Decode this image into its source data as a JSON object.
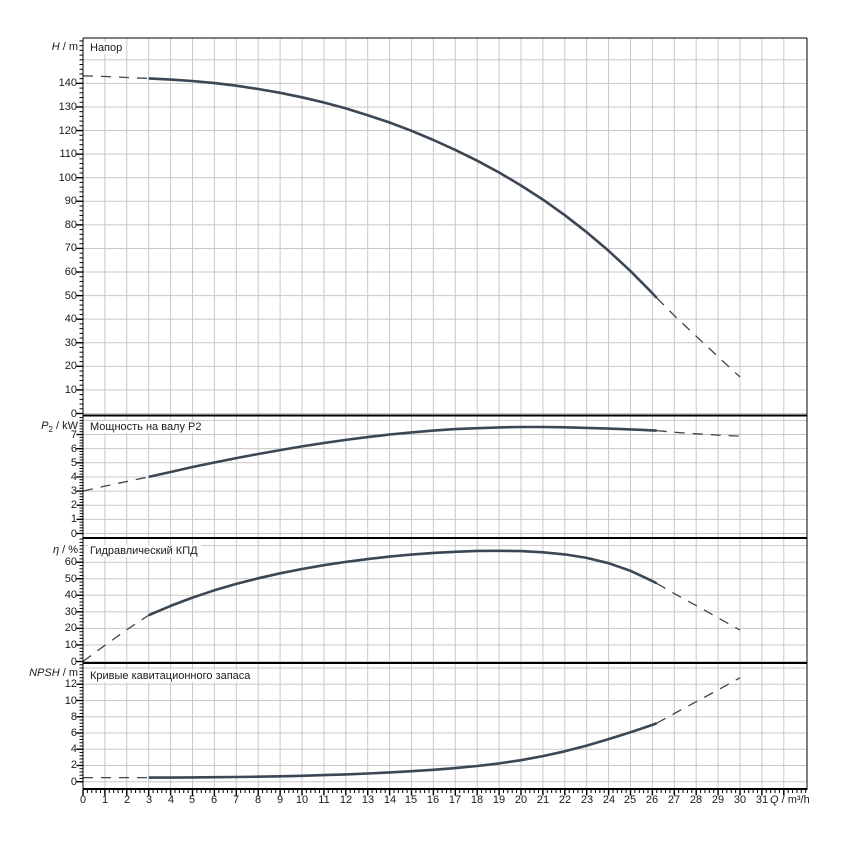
{
  "figure": {
    "background": "#ffffff",
    "curve_color": "#3b4754",
    "grid_color": "#c8c8c8",
    "axis_color": "#000000",
    "text_color": "#1a1a1a"
  },
  "x_axis": {
    "label_sym": "Q",
    "label_rest": " / m³/h",
    "label_full": "Q / m³/h",
    "tick_labels": [
      "0",
      "1",
      "2",
      "3",
      "4",
      "5",
      "6",
      "7",
      "8",
      "9",
      "10",
      "11",
      "12",
      "13",
      "14",
      "15",
      "16",
      "17",
      "18",
      "19",
      "20",
      "21",
      "22",
      "23",
      "24",
      "25",
      "26",
      "27",
      "28",
      "29",
      "30",
      "31"
    ],
    "grid_values": [
      1,
      2,
      3,
      4,
      5,
      6,
      7,
      8,
      9,
      10,
      11,
      12,
      13,
      14,
      15,
      16,
      17,
      18,
      19,
      20,
      21,
      22,
      23,
      24,
      25,
      26,
      27,
      28,
      29,
      30,
      31,
      32
    ],
    "minor_step": 0.2,
    "range": [
      0,
      33.06
    ]
  },
  "chart_data": [
    {
      "type": "line",
      "panel": "head",
      "title": "Напор",
      "ylabel": {
        "sym": "H",
        "sub": "",
        "rest": " / m",
        "full": "H / m"
      },
      "xlabel": "Q / m³/h",
      "ylim": [
        0,
        159
      ],
      "y_tick_labels": [
        0,
        10,
        20,
        30,
        40,
        50,
        60,
        70,
        80,
        90,
        100,
        110,
        120,
        130,
        140
      ],
      "y_grid": [
        0,
        10,
        20,
        30,
        40,
        50,
        60,
        70,
        80,
        90,
        100,
        110,
        120,
        130,
        140,
        150
      ],
      "y_minor_step": 2,
      "series": [
        {
          "name": "below-min-flow",
          "style": "dashed",
          "points": [
            [
              0,
              143.2
            ],
            [
              1,
              142.9
            ],
            [
              2,
              142.5
            ],
            [
              3,
              142.1
            ]
          ]
        },
        {
          "name": "main",
          "style": "solid",
          "points": [
            [
              3,
              142.1
            ],
            [
              4,
              141.6
            ],
            [
              5,
              141.0
            ],
            [
              6,
              140.1
            ],
            [
              7,
              139.0
            ],
            [
              8,
              137.6
            ],
            [
              9,
              136.0
            ],
            [
              10,
              134.1
            ],
            [
              11,
              131.9
            ],
            [
              12,
              129.4
            ],
            [
              13,
              126.5
            ],
            [
              14,
              123.4
            ],
            [
              15,
              119.9
            ],
            [
              16,
              116.0
            ],
            [
              17,
              111.8
            ],
            [
              18,
              107.2
            ],
            [
              19,
              102.2
            ],
            [
              20,
              96.7
            ],
            [
              21,
              90.7
            ],
            [
              22,
              84.1
            ],
            [
              23,
              76.9
            ],
            [
              24,
              69.0
            ],
            [
              25,
              60.4
            ],
            [
              26,
              51.0
            ],
            [
              26.2,
              49.0
            ]
          ]
        },
        {
          "name": "above-max-flow",
          "style": "dashed",
          "points": [
            [
              26.2,
              49.0
            ],
            [
              27,
              41.5
            ],
            [
              28,
              32.8
            ],
            [
              29,
              24.1
            ],
            [
              30,
              15.5
            ]
          ]
        }
      ]
    },
    {
      "type": "line",
      "panel": "power",
      "title": "Мощность на валу P2",
      "ylabel": {
        "sym": "P",
        "sub": "2",
        "rest": " / kW",
        "full": "P2 / kW"
      },
      "xlabel": "Q / m³/h",
      "ylim": [
        0,
        8.3
      ],
      "y_tick_labels": [
        0,
        1,
        2,
        3,
        4,
        5,
        6,
        7
      ],
      "y_grid": [
        0,
        1,
        2,
        3,
        4,
        5,
        6,
        7,
        8
      ],
      "y_minor_step": 0.2,
      "series": [
        {
          "name": "below-min-flow",
          "style": "dashed",
          "points": [
            [
              0,
              3.0
            ],
            [
              1,
              3.35
            ],
            [
              2,
              3.68
            ],
            [
              3,
              4.0
            ]
          ]
        },
        {
          "name": "main",
          "style": "solid",
          "points": [
            [
              3,
              4.0
            ],
            [
              4,
              4.35
            ],
            [
              5,
              4.7
            ],
            [
              6,
              5.02
            ],
            [
              7,
              5.33
            ],
            [
              8,
              5.62
            ],
            [
              9,
              5.9
            ],
            [
              10,
              6.16
            ],
            [
              11,
              6.4
            ],
            [
              12,
              6.62
            ],
            [
              13,
              6.82
            ],
            [
              14,
              7.0
            ],
            [
              15,
              7.15
            ],
            [
              16,
              7.28
            ],
            [
              17,
              7.38
            ],
            [
              18,
              7.45
            ],
            [
              19,
              7.5
            ],
            [
              20,
              7.53
            ],
            [
              21,
              7.53
            ],
            [
              22,
              7.51
            ],
            [
              23,
              7.47
            ],
            [
              24,
              7.42
            ],
            [
              25,
              7.36
            ],
            [
              26,
              7.29
            ],
            [
              26.2,
              7.28
            ]
          ]
        },
        {
          "name": "above-max-flow",
          "style": "dashed",
          "points": [
            [
              26.2,
              7.28
            ],
            [
              27,
              7.16
            ],
            [
              28,
              7.05
            ],
            [
              29,
              6.96
            ],
            [
              30,
              6.88
            ]
          ]
        }
      ]
    },
    {
      "type": "line",
      "panel": "efficiency",
      "title": "Гидравлический КПД",
      "ylabel": {
        "sym": "η",
        "sub": "",
        "rest": " / %",
        "full": "η / %"
      },
      "xlabel": "Q / m³/h",
      "ylim": [
        0,
        73.5
      ],
      "y_tick_labels": [
        0,
        10,
        20,
        30,
        40,
        50,
        60
      ],
      "y_grid": [
        0,
        10,
        20,
        30,
        40,
        50,
        60,
        70
      ],
      "y_minor_step": 2,
      "series": [
        {
          "name": "below-min-flow",
          "style": "dashed",
          "points": [
            [
              0,
              0
            ],
            [
              1,
              9.8
            ],
            [
              2,
              19.2
            ],
            [
              3,
              28
            ]
          ]
        },
        {
          "name": "main",
          "style": "solid",
          "points": [
            [
              3,
              28
            ],
            [
              4,
              33.6
            ],
            [
              5,
              38.6
            ],
            [
              6,
              43
            ],
            [
              7,
              46.9
            ],
            [
              8,
              50.3
            ],
            [
              9,
              53.3
            ],
            [
              10,
              55.9
            ],
            [
              11,
              58.2
            ],
            [
              12,
              60.2
            ],
            [
              13,
              61.9
            ],
            [
              14,
              63.4
            ],
            [
              15,
              64.6
            ],
            [
              16,
              65.6
            ],
            [
              17,
              66.3
            ],
            [
              18,
              66.8
            ],
            [
              19,
              66.9
            ],
            [
              20,
              66.7
            ],
            [
              21,
              66.0
            ],
            [
              22,
              64.7
            ],
            [
              23,
              62.6
            ],
            [
              24,
              59.4
            ],
            [
              25,
              54.8
            ],
            [
              26,
              48.6
            ],
            [
              26.2,
              47.2
            ]
          ]
        },
        {
          "name": "above-max-flow",
          "style": "dashed",
          "points": [
            [
              26.2,
              47.2
            ],
            [
              27,
              41
            ],
            [
              28,
              33.8
            ],
            [
              29,
              26.4
            ],
            [
              30,
              19
            ]
          ]
        }
      ]
    },
    {
      "type": "line",
      "panel": "npsh",
      "title": "Кривые кавитационного запаса",
      "ylabel": {
        "sym": "NPSH",
        "sub": "",
        "rest": " / m",
        "full": "NPSH / m"
      },
      "xlabel": "Q / m³/h",
      "ylim": [
        -0.9,
        14.5
      ],
      "y_tick_labels": [
        0,
        2,
        4,
        6,
        8,
        10,
        12
      ],
      "y_grid": [
        0,
        2,
        4,
        6,
        8,
        10,
        12,
        14
      ],
      "y_minor_step": 0.4,
      "series": [
        {
          "name": "below-min-flow",
          "style": "dashed",
          "points": [
            [
              0,
              0.5
            ],
            [
              1,
              0.5
            ],
            [
              2,
              0.5
            ],
            [
              3,
              0.5
            ]
          ]
        },
        {
          "name": "main",
          "style": "solid",
          "points": [
            [
              3,
              0.5
            ],
            [
              4,
              0.51
            ],
            [
              5,
              0.53
            ],
            [
              6,
              0.55
            ],
            [
              7,
              0.58
            ],
            [
              8,
              0.62
            ],
            [
              9,
              0.67
            ],
            [
              10,
              0.73
            ],
            [
              11,
              0.81
            ],
            [
              12,
              0.9
            ],
            [
              13,
              1.01
            ],
            [
              14,
              1.14
            ],
            [
              15,
              1.29
            ],
            [
              16,
              1.47
            ],
            [
              17,
              1.68
            ],
            [
              18,
              1.93
            ],
            [
              19,
              2.25
            ],
            [
              20,
              2.65
            ],
            [
              21,
              3.15
            ],
            [
              22,
              3.75
            ],
            [
              23,
              4.45
            ],
            [
              24,
              5.25
            ],
            [
              25,
              6.1
            ],
            [
              26,
              7.0
            ],
            [
              26.2,
              7.2
            ]
          ]
        },
        {
          "name": "above-max-flow",
          "style": "dashed",
          "points": [
            [
              26.2,
              7.2
            ],
            [
              27,
              8.4
            ],
            [
              28,
              9.85
            ],
            [
              29,
              11.3
            ],
            [
              30,
              12.8
            ]
          ]
        }
      ]
    }
  ]
}
